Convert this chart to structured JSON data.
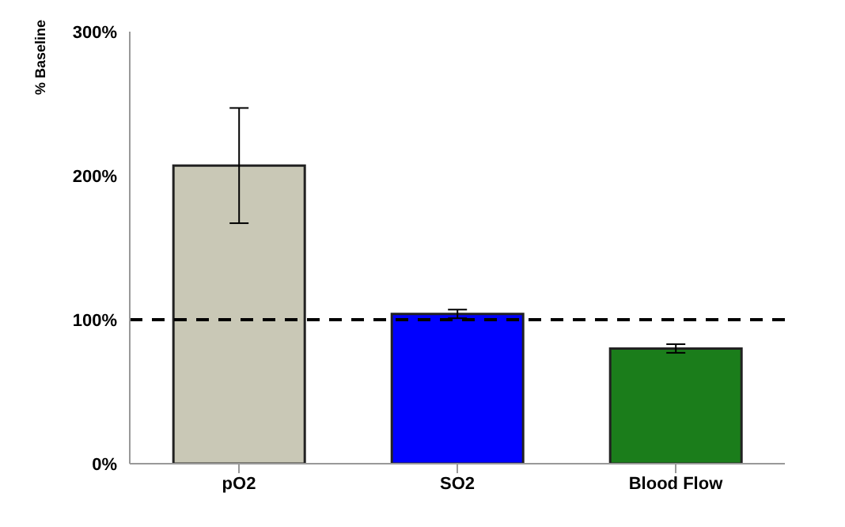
{
  "chart_data": {
    "type": "bar",
    "ylabel": "% Baseline",
    "categories": [
      "pO2",
      "SO2",
      "Blood Flow"
    ],
    "values": [
      207,
      104,
      80
    ],
    "colors": [
      "#c9c8b6",
      "#0000ff",
      "#1b7d1b"
    ],
    "errors": [
      40,
      3,
      3
    ],
    "ylim": [
      0,
      300
    ],
    "yticks": [
      {
        "value": 0,
        "label": "0%"
      },
      {
        "value": 100,
        "label": "100%"
      },
      {
        "value": 200,
        "label": "200%"
      },
      {
        "value": 300,
        "label": "300%"
      }
    ],
    "ref_lines": [
      {
        "axis": "y",
        "value": 100,
        "label": null,
        "color": "#000000",
        "line_style": "dashed"
      }
    ],
    "grid": false,
    "legend": false
  }
}
